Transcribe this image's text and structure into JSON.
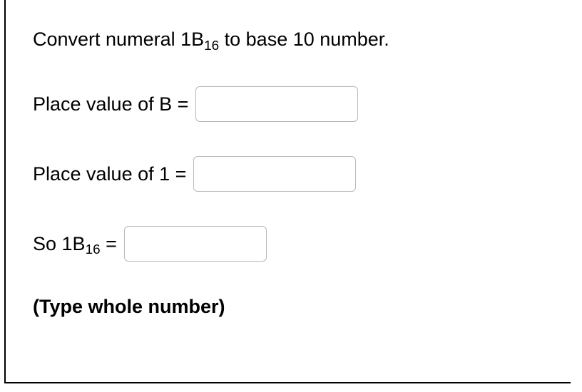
{
  "prompt": {
    "prefix": "Convert numeral 1B",
    "sub": "16",
    "suffix": " to base 10 number."
  },
  "rows": {
    "b": {
      "label": "Place value of B ="
    },
    "one": {
      "label": "Place value of 1 ="
    },
    "result": {
      "prefix": "So 1B",
      "sub": "16",
      "suffix": " ="
    }
  },
  "hint": "(Type whole number)",
  "styles": {
    "font_size_main": 27,
    "font_size_sub": 19,
    "input_border_color": "#b8b8b8",
    "input_border_radius": 6,
    "input_height": 50,
    "input_width": 228,
    "input_width_small": 200,
    "text_color": "#000000",
    "background_color": "#ffffff",
    "container_border_color": "#000000"
  }
}
